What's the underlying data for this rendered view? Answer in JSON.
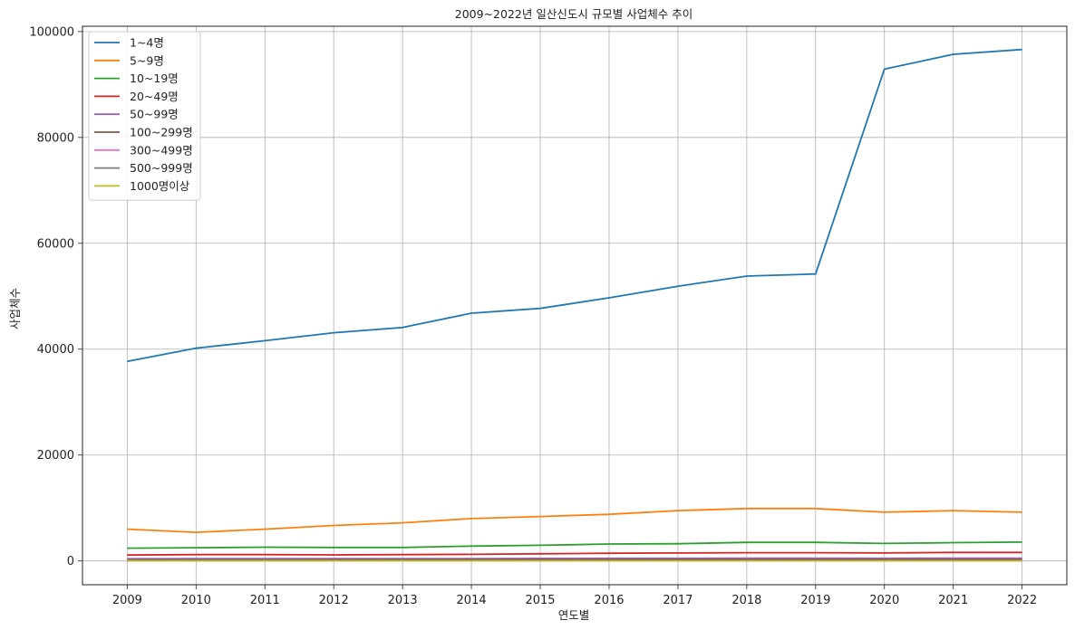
{
  "chart_data": {
    "type": "line",
    "title": "2009~2022년 일산신도시 규모별 사업체수 추이",
    "xlabel": "연도별",
    "ylabel": "사업체수",
    "x": [
      "2009",
      "2010",
      "2011",
      "2012",
      "2013",
      "2014",
      "2015",
      "2016",
      "2017",
      "2018",
      "2019",
      "2020",
      "2021",
      "2022"
    ],
    "ylim": [
      -4500,
      101000
    ],
    "yticks": [
      "0",
      "20000",
      "40000",
      "60000",
      "80000",
      "100000"
    ],
    "grid": true,
    "legend_position": "top-left",
    "series": [
      {
        "name": "1~4명",
        "color": "#1f77b4",
        "values": [
          37700,
          40200,
          41600,
          43100,
          44100,
          46800,
          47700,
          49700,
          51900,
          53800,
          54200,
          92900,
          95700,
          96600
        ]
      },
      {
        "name": "5~9명",
        "color": "#ff7f0e",
        "values": [
          6000,
          5400,
          6000,
          6700,
          7200,
          8000,
          8400,
          8800,
          9500,
          9900,
          9900,
          9200,
          9500,
          9200
        ]
      },
      {
        "name": "10~19명",
        "color": "#2ca02c",
        "values": [
          2400,
          2500,
          2600,
          2550,
          2550,
          2800,
          2950,
          3200,
          3250,
          3500,
          3500,
          3300,
          3450,
          3550
        ]
      },
      {
        "name": "20~49명",
        "color": "#d62728",
        "values": [
          1100,
          1200,
          1200,
          1150,
          1200,
          1250,
          1350,
          1450,
          1500,
          1550,
          1550,
          1500,
          1600,
          1600
        ]
      },
      {
        "name": "50~99명",
        "color": "#9467bd",
        "values": [
          400,
          420,
          430,
          430,
          440,
          450,
          470,
          490,
          500,
          510,
          520,
          500,
          520,
          530
        ]
      },
      {
        "name": "100~299명",
        "color": "#8c564b",
        "values": [
          200,
          210,
          210,
          220,
          220,
          230,
          240,
          250,
          250,
          260,
          260,
          250,
          260,
          270
        ]
      },
      {
        "name": "300~499명",
        "color": "#e377c2",
        "values": [
          40,
          40,
          45,
          45,
          45,
          50,
          50,
          50,
          55,
          55,
          55,
          50,
          55,
          55
        ]
      },
      {
        "name": "500~999명",
        "color": "#7f7f7f",
        "values": [
          25,
          25,
          25,
          30,
          30,
          30,
          30,
          30,
          35,
          35,
          35,
          30,
          35,
          35
        ]
      },
      {
        "name": "1000명이상",
        "color": "#bcbd22",
        "values": [
          10,
          10,
          10,
          10,
          12,
          12,
          12,
          12,
          12,
          12,
          14,
          12,
          14,
          14
        ]
      }
    ]
  }
}
